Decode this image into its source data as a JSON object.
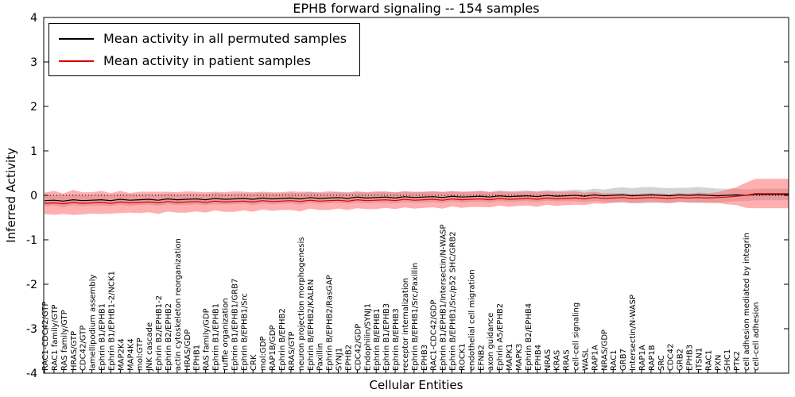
{
  "chart_data": {
    "type": "line",
    "title": "EPHB forward signaling -- 154 samples",
    "xlabel": "Cellular Entities",
    "ylabel": "Inferred Activity",
    "ylim": [
      -4,
      4
    ],
    "ytick_values": [
      4,
      3,
      2,
      1,
      0,
      -1,
      -2,
      -3,
      -4
    ],
    "yticks": [
      "4",
      "3",
      "2",
      "1",
      "0",
      "-1",
      "-2",
      "-3",
      "-4"
    ],
    "zero_reference_line": "dotted",
    "legend_position": "upper left",
    "grid": false,
    "legend": [
      {
        "label": "Mean activity in all permuted samples",
        "color": "#000000"
      },
      {
        "label": "Mean activity in patient samples",
        "color": "#dd0000"
      }
    ],
    "categories": [
      "RAC1-CDC42/GTP",
      "RAC1 family/GTP",
      "RAS family/GTP",
      "HRAS/GTP",
      "CDC42/GTP",
      "lamellipodium assembly",
      "Ephrin B1/EPHB1",
      "Ephrin B1/EPHB1-2/NCK1",
      "MAP2K4",
      "MAP4K4",
      "mol:GTP",
      "JNK cascade",
      "Ephrin B2/EPHB1-2",
      "Ephrin B2/EPHB2",
      "actin cytoskeleton reorganization",
      "HRAS/GDP",
      "EPHB1",
      "RAS family/GDP",
      "Ephrin B1/EPHB1",
      "ruffle organization",
      "Ephrin B1/EPHB1/GRB7",
      "Ephrin B/EPHB1/Src",
      "CRK",
      "mol:GDP",
      "RAP1B/GDP",
      "Ephrin B/EPHB2",
      "RRAS/GTP",
      "neuron projection morphogenesis",
      "Ephrin B/EPHB2/KALRN",
      "Paxillin",
      "Ephrin B/EPHB2/RasGAP",
      "SYNJ1",
      "EPHB2",
      "CDC42/GDP",
      "Endophilin/SYNJ1",
      "Ephrin B/EPHB1",
      "Ephrin B1/EPHB3",
      "Ephrin B/EPHB3",
      "receptor internalization",
      "Ephrin B/EPHB1/Src/Paxillin",
      "EPHB3",
      "RAC1-CDC42/GDP",
      "Ephrin B1/EPHB1/Intersectin/N-WASP",
      "Ephrin B/EPHB1/Src/p52 SHC/GRB2",
      "ROCK1",
      "endothelial cell migration",
      "EFNB2",
      "axon guidance",
      "Ephrin A5/EPHB2",
      "MAPK1",
      "MAPK3",
      "Ephrin B2/EPHB4",
      "EPHB4",
      "NRAS",
      "KRAS",
      "RRAS",
      "cell-cell signaling",
      "WASL",
      "RAP1A",
      "NRAS/GDP",
      "RAC1",
      "GRB7",
      "Intersectin/N-WASP",
      "RAP1A",
      "RAP1B",
      "SRC",
      "CDC42",
      "GRB2",
      "EPHB3",
      "ITSN1",
      "RAC1",
      "PXN",
      "SHC1",
      "PTK2",
      "cell adhesion mediated by integrin",
      "cell-cell adhesion"
    ],
    "series": [
      {
        "name": "Mean activity in all permuted samples",
        "line_color": "#000000",
        "band_color": "#a0a0a0",
        "band_opacity": 0.45,
        "values": [
          -0.12,
          -0.11,
          -0.13,
          -0.1,
          -0.12,
          -0.11,
          -0.1,
          -0.12,
          -0.09,
          -0.11,
          -0.1,
          -0.09,
          -0.11,
          -0.08,
          -0.1,
          -0.09,
          -0.08,
          -0.1,
          -0.07,
          -0.09,
          -0.08,
          -0.07,
          -0.09,
          -0.06,
          -0.08,
          -0.07,
          -0.06,
          -0.08,
          -0.05,
          -0.07,
          -0.06,
          -0.05,
          -0.07,
          -0.04,
          -0.06,
          -0.05,
          -0.04,
          -0.06,
          -0.03,
          -0.05,
          -0.04,
          -0.03,
          -0.05,
          -0.02,
          -0.04,
          -0.03,
          -0.02,
          -0.04,
          -0.01,
          -0.03,
          -0.02,
          -0.01,
          -0.03,
          0.0,
          -0.02,
          -0.01,
          0.0,
          -0.02,
          0.01,
          -0.01,
          0.0,
          0.01,
          -0.01,
          0.0,
          0.01,
          0.0,
          -0.01,
          0.01,
          0.0,
          0.01,
          0.0,
          -0.01,
          0.0,
          0.01,
          0.0,
          0.02
        ],
        "band_halfwidth": [
          0.13,
          0.12,
          0.14,
          0.12,
          0.13,
          0.12,
          0.13,
          0.12,
          0.12,
          0.13,
          0.12,
          0.12,
          0.13,
          0.12,
          0.12,
          0.13,
          0.12,
          0.12,
          0.13,
          0.12,
          0.12,
          0.12,
          0.13,
          0.12,
          0.12,
          0.12,
          0.12,
          0.13,
          0.12,
          0.12,
          0.12,
          0.12,
          0.12,
          0.12,
          0.12,
          0.12,
          0.13,
          0.12,
          0.12,
          0.12,
          0.12,
          0.12,
          0.12,
          0.12,
          0.12,
          0.12,
          0.12,
          0.12,
          0.12,
          0.12,
          0.12,
          0.12,
          0.12,
          0.12,
          0.12,
          0.12,
          0.13,
          0.13,
          0.14,
          0.14,
          0.16,
          0.17,
          0.17,
          0.18,
          0.18,
          0.17,
          0.17,
          0.16,
          0.17,
          0.18,
          0.17,
          0.16,
          0.15,
          0.14,
          0.13,
          0.13
        ]
      },
      {
        "name": "Mean activity in patient samples",
        "line_color": "#dd0000",
        "band_color": "#ff5f5f",
        "band_opacity": 0.5,
        "values": [
          -0.18,
          -0.17,
          -0.19,
          -0.16,
          -0.18,
          -0.17,
          -0.16,
          -0.18,
          -0.15,
          -0.17,
          -0.16,
          -0.15,
          -0.17,
          -0.14,
          -0.16,
          -0.15,
          -0.14,
          -0.16,
          -0.13,
          -0.15,
          -0.14,
          -0.13,
          -0.15,
          -0.12,
          -0.14,
          -0.13,
          -0.12,
          -0.14,
          -0.11,
          -0.13,
          -0.12,
          -0.11,
          -0.13,
          -0.1,
          -0.12,
          -0.11,
          -0.1,
          -0.12,
          -0.09,
          -0.11,
          -0.1,
          -0.09,
          -0.11,
          -0.08,
          -0.1,
          -0.09,
          -0.08,
          -0.1,
          -0.07,
          -0.09,
          -0.08,
          -0.07,
          -0.09,
          -0.06,
          -0.08,
          -0.07,
          -0.06,
          -0.08,
          -0.05,
          -0.07,
          -0.06,
          -0.05,
          -0.07,
          -0.06,
          -0.05,
          -0.06,
          -0.07,
          -0.05,
          -0.06,
          -0.05,
          -0.06,
          -0.05,
          -0.04,
          -0.02,
          0.0,
          0.04
        ],
        "band_halfwidth": [
          0.24,
          0.27,
          0.23,
          0.28,
          0.25,
          0.24,
          0.26,
          0.23,
          0.25,
          0.22,
          0.24,
          0.23,
          0.25,
          0.22,
          0.23,
          0.24,
          0.22,
          0.23,
          0.21,
          0.22,
          0.23,
          0.21,
          0.22,
          0.2,
          0.21,
          0.2,
          0.21,
          0.22,
          0.19,
          0.2,
          0.21,
          0.19,
          0.2,
          0.19,
          0.19,
          0.2,
          0.18,
          0.19,
          0.18,
          0.19,
          0.18,
          0.18,
          0.19,
          0.17,
          0.18,
          0.17,
          0.18,
          0.17,
          0.16,
          0.17,
          0.16,
          0.16,
          0.17,
          0.15,
          0.16,
          0.15,
          0.15,
          0.14,
          0.13,
          0.12,
          0.11,
          0.1,
          0.1,
          0.1,
          0.1,
          0.1,
          0.1,
          0.1,
          0.1,
          0.11,
          0.11,
          0.12,
          0.16,
          0.2,
          0.28,
          0.33
        ]
      }
    ]
  }
}
